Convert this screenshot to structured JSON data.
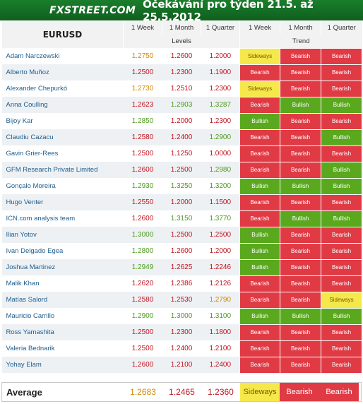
{
  "header": {
    "logo": "FXSTREET.COM",
    "title": "Očekávání pro týden 21.5. až 25.5.2012"
  },
  "table": {
    "asset": "EURUSD",
    "periods": [
      "1 Week",
      "1 Month",
      "1 Quarter"
    ],
    "levels_label": "Levels",
    "trend_label": "Trend",
    "rows": [
      {
        "name": "Adam Narczewski",
        "l1": "1.2750",
        "l2": "1.2600",
        "l3": "1.2000",
        "t1": "Sideways",
        "t2": "Bearish",
        "t3": "Bearish"
      },
      {
        "name": "Alberto Muñoz",
        "l1": "1.2500",
        "l2": "1.2300",
        "l3": "1.1900",
        "t1": "Bearish",
        "t2": "Bearish",
        "t3": "Bearish"
      },
      {
        "name": "Alexander Chepurkó",
        "l1": "1.2730",
        "l2": "1.2510",
        "l3": "1.2300",
        "t1": "Sideways",
        "t2": "Bearish",
        "t3": "Bearish"
      },
      {
        "name": "Anna Coulling",
        "l1": "1.2623",
        "l2": "1.2903",
        "l3": "1.3287",
        "t1": "Bearish",
        "t2": "Bullish",
        "t3": "Bullish"
      },
      {
        "name": "Bijoy Kar",
        "l1": "1.2850",
        "l2": "1.2000",
        "l3": "1.2300",
        "t1": "Bullish",
        "t2": "Bearish",
        "t3": "Bearish"
      },
      {
        "name": "Claudiu Cazacu",
        "l1": "1.2580",
        "l2": "1.2400",
        "l3": "1.2900",
        "t1": "Bearish",
        "t2": "Bearish",
        "t3": "Bullish"
      },
      {
        "name": "Gavin Grier-Rees",
        "l1": "1.2500",
        "l2": "1.1250",
        "l3": "1.0000",
        "t1": "Bearish",
        "t2": "Bearish",
        "t3": "Bearish"
      },
      {
        "name": "GFM Research Private Limited",
        "l1": "1.2600",
        "l2": "1.2500",
        "l3": "1.2980",
        "t1": "Bearish",
        "t2": "Bearish",
        "t3": "Bullish"
      },
      {
        "name": "Gonçalo Moreira",
        "l1": "1.2930",
        "l2": "1.3250",
        "l3": "1.3200",
        "t1": "Bullish",
        "t2": "Bullish",
        "t3": "Bullish"
      },
      {
        "name": "Hugo Venter",
        "l1": "1.2550",
        "l2": "1.2000",
        "l3": "1.1500",
        "t1": "Bearish",
        "t2": "Bearish",
        "t3": "Bearish"
      },
      {
        "name": "ICN.com analysis team",
        "l1": "1.2600",
        "l2": "1.3150",
        "l3": "1.3770",
        "t1": "Bearish",
        "t2": "Bullish",
        "t3": "Bullish"
      },
      {
        "name": "Ilian Yotov",
        "l1": "1.3000",
        "l2": "1.2500",
        "l3": "1.2500",
        "t1": "Bullish",
        "t2": "Bearish",
        "t3": "Bearish"
      },
      {
        "name": "Ivan Delgado Egea",
        "l1": "1.2800",
        "l2": "1.2600",
        "l3": "1.2000",
        "t1": "Bullish",
        "t2": "Bearish",
        "t3": "Bearish"
      },
      {
        "name": "Joshua Martinez",
        "l1": "1.2949",
        "l2": "1.2625",
        "l3": "1.2246",
        "t1": "Bullish",
        "t2": "Bearish",
        "t3": "Bearish"
      },
      {
        "name": "Malik Khan",
        "l1": "1.2620",
        "l2": "1.2386",
        "l3": "1.2126",
        "t1": "Bearish",
        "t2": "Bearish",
        "t3": "Bearish"
      },
      {
        "name": "Matías Salord",
        "l1": "1.2580",
        "l2": "1.2530",
        "l3": "1.2790",
        "t1": "Bearish",
        "t2": "Bearish",
        "t3": "Sideways"
      },
      {
        "name": "Mauricio Carrillo",
        "l1": "1.2900",
        "l2": "1.3000",
        "l3": "1.3100",
        "t1": "Bullish",
        "t2": "Bullish",
        "t3": "Bullish"
      },
      {
        "name": "Ross Yamashita",
        "l1": "1.2500",
        "l2": "1.2300",
        "l3": "1.1800",
        "t1": "Bearish",
        "t2": "Bearish",
        "t3": "Bearish"
      },
      {
        "name": "Valeria Bednarik",
        "l1": "1.2500",
        "l2": "1.2400",
        "l3": "1.2100",
        "t1": "Bearish",
        "t2": "Bearish",
        "t3": "Bearish"
      },
      {
        "name": "Yohay Elam",
        "l1": "1.2600",
        "l2": "1.2100",
        "l3": "1.2400",
        "t1": "Bearish",
        "t2": "Bearish",
        "t3": "Bearish"
      }
    ],
    "average": {
      "label": "Average",
      "l1": "1.2683",
      "l2": "1.2465",
      "l3": "1.2360",
      "t1": "Sideways",
      "t2": "Bearish",
      "t3": "Bearish"
    }
  },
  "colors": {
    "banner": "#1a7e2c",
    "bullish": "#5aa81e",
    "bearish": "#e03a45",
    "sideways": "#f5e84b",
    "name_text": "#1f5e8e"
  }
}
